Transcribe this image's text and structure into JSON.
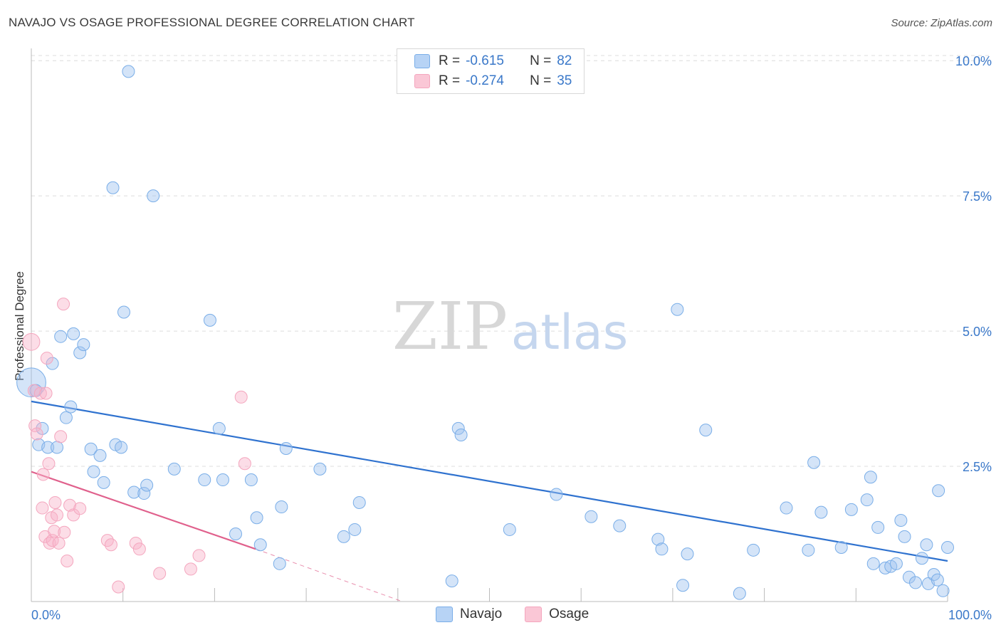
{
  "title": "NAVAJO VS OSAGE PROFESSIONAL DEGREE CORRELATION CHART",
  "source": "Source: ZipAtlas.com",
  "watermark": {
    "zip": "ZIP",
    "atlas": "atlas"
  },
  "legend": {
    "rows": [
      {
        "r_label": "R =",
        "r_value": "-0.615",
        "n_label": "N =",
        "n_value": "82"
      },
      {
        "r_label": "R =",
        "r_value": "-0.274",
        "n_label": "N =",
        "n_value": "35"
      }
    ]
  },
  "bottom_legend": {
    "navajo": "Navajo",
    "osage": "Osage"
  },
  "chart_data": {
    "type": "scatter",
    "title": "NAVAJO VS OSAGE PROFESSIONAL DEGREE CORRELATION CHART",
    "xlabel": "",
    "ylabel": "Professional Degree",
    "xlim": [
      0,
      100
    ],
    "ylim": [
      0,
      10.2
    ],
    "x_tick_labels": [
      "0.0%",
      "100.0%"
    ],
    "y_ticks": [
      2.5,
      5.0,
      7.5,
      10.0
    ],
    "y_tick_labels": [
      "2.5%",
      "5.0%",
      "7.5%",
      "10.0%"
    ],
    "grid": true,
    "series": [
      {
        "name": "Navajo",
        "color": "#7aaee8",
        "line_color": "#2f72cf",
        "trend": {
          "x0": 0,
          "y0": 3.7,
          "x1": 100,
          "y1": 0.75
        },
        "points": [
          [
            0.0,
            4.05,
            2.4
          ],
          [
            0.5,
            3.9,
            1
          ],
          [
            0.8,
            2.9,
            1
          ],
          [
            1.2,
            3.2,
            1
          ],
          [
            1.8,
            2.85,
            1
          ],
          [
            2.3,
            4.4,
            1
          ],
          [
            2.8,
            2.85,
            1
          ],
          [
            3.2,
            4.9,
            1
          ],
          [
            3.8,
            3.4,
            1
          ],
          [
            4.3,
            3.6,
            1
          ],
          [
            4.6,
            4.95,
            1
          ],
          [
            5.3,
            4.6,
            1
          ],
          [
            5.7,
            4.75,
            1
          ],
          [
            6.5,
            2.82,
            1
          ],
          [
            6.8,
            2.4,
            1
          ],
          [
            7.5,
            2.7,
            1
          ],
          [
            7.9,
            2.2,
            1
          ],
          [
            8.9,
            7.65,
            1
          ],
          [
            9.2,
            2.9,
            1
          ],
          [
            9.8,
            2.85,
            1
          ],
          [
            10.1,
            5.35,
            1
          ],
          [
            10.6,
            9.8,
            1
          ],
          [
            11.2,
            2.02,
            1
          ],
          [
            12.3,
            2.0,
            1
          ],
          [
            12.6,
            2.15,
            1
          ],
          [
            13.3,
            7.5,
            1
          ],
          [
            15.6,
            2.45,
            1
          ],
          [
            18.9,
            2.25,
            1
          ],
          [
            19.5,
            5.2,
            1
          ],
          [
            20.5,
            3.2,
            1
          ],
          [
            20.9,
            2.25,
            1
          ],
          [
            22.3,
            1.25,
            1
          ],
          [
            24.0,
            2.25,
            1
          ],
          [
            24.6,
            1.55,
            1
          ],
          [
            25.0,
            1.05,
            1
          ],
          [
            27.1,
            0.7,
            1
          ],
          [
            27.3,
            1.75,
            1
          ],
          [
            27.8,
            2.83,
            1
          ],
          [
            31.5,
            2.45,
            1
          ],
          [
            34.1,
            1.2,
            1
          ],
          [
            35.3,
            1.33,
            1
          ],
          [
            35.8,
            1.83,
            1
          ],
          [
            45.9,
            0.38,
            1
          ],
          [
            46.6,
            3.2,
            1
          ],
          [
            46.9,
            3.08,
            1
          ],
          [
            52.2,
            1.33,
            1
          ],
          [
            57.3,
            1.98,
            1
          ],
          [
            61.1,
            1.57,
            1
          ],
          [
            64.2,
            1.4,
            1
          ],
          [
            68.4,
            1.15,
            1
          ],
          [
            68.8,
            0.97,
            1
          ],
          [
            70.5,
            5.4,
            1
          ],
          [
            71.1,
            0.3,
            1
          ],
          [
            71.6,
            0.88,
            1
          ],
          [
            73.6,
            3.17,
            1
          ],
          [
            77.3,
            0.15,
            1
          ],
          [
            78.8,
            0.95,
            1
          ],
          [
            82.4,
            1.73,
            1
          ],
          [
            84.8,
            0.95,
            1
          ],
          [
            85.4,
            2.57,
            1
          ],
          [
            86.2,
            1.65,
            1
          ],
          [
            88.4,
            1.0,
            1
          ],
          [
            89.5,
            1.7,
            1
          ],
          [
            91.2,
            1.88,
            1
          ],
          [
            91.6,
            2.3,
            1
          ],
          [
            91.9,
            0.7,
            1
          ],
          [
            92.4,
            1.37,
            1
          ],
          [
            93.2,
            0.62,
            1
          ],
          [
            93.8,
            0.65,
            1
          ],
          [
            94.4,
            0.7,
            1
          ],
          [
            94.9,
            1.5,
            1
          ],
          [
            95.3,
            1.2,
            1
          ],
          [
            95.8,
            0.45,
            1
          ],
          [
            96.5,
            0.35,
            1
          ],
          [
            97.2,
            0.8,
            1
          ],
          [
            97.7,
            1.05,
            1
          ],
          [
            97.9,
            0.33,
            1
          ],
          [
            98.5,
            0.5,
            1
          ],
          [
            98.9,
            0.4,
            1
          ],
          [
            99.0,
            2.05,
            1
          ],
          [
            99.5,
            0.2,
            1
          ],
          [
            100.0,
            1.0,
            1
          ]
        ]
      },
      {
        "name": "Osage",
        "color": "#f4a6be",
        "line_color": "#e0608c",
        "trend": {
          "x0": 0,
          "y0": 2.4,
          "x1": 24.5,
          "y1": 0.97
        },
        "trend_dashed": {
          "x0": 24.5,
          "y0": 0.97,
          "x1": 40.5,
          "y1": 0.0
        },
        "points": [
          [
            0.0,
            4.8,
            1.4
          ],
          [
            0.3,
            3.9,
            1
          ],
          [
            0.4,
            3.25,
            1
          ],
          [
            0.6,
            3.1,
            1
          ],
          [
            1.0,
            3.85,
            1
          ],
          [
            1.2,
            1.73,
            1
          ],
          [
            1.3,
            2.35,
            1
          ],
          [
            1.5,
            1.2,
            1
          ],
          [
            1.6,
            3.85,
            1
          ],
          [
            1.7,
            4.5,
            1
          ],
          [
            1.9,
            2.55,
            1
          ],
          [
            2.0,
            1.08,
            1
          ],
          [
            2.2,
            1.55,
            1
          ],
          [
            2.3,
            1.13,
            1
          ],
          [
            2.5,
            1.3,
            1
          ],
          [
            2.6,
            1.83,
            1
          ],
          [
            2.8,
            1.6,
            1
          ],
          [
            3.0,
            1.08,
            1
          ],
          [
            3.2,
            3.05,
            1
          ],
          [
            3.5,
            5.5,
            1
          ],
          [
            3.6,
            1.28,
            1
          ],
          [
            3.9,
            0.75,
            1
          ],
          [
            4.2,
            1.78,
            1
          ],
          [
            4.6,
            1.6,
            1
          ],
          [
            5.3,
            1.72,
            1
          ],
          [
            8.3,
            1.13,
            1
          ],
          [
            8.7,
            1.05,
            1
          ],
          [
            9.5,
            0.27,
            1
          ],
          [
            11.4,
            1.08,
            1
          ],
          [
            11.8,
            0.97,
            1
          ],
          [
            14.0,
            0.52,
            1
          ],
          [
            17.4,
            0.6,
            1
          ],
          [
            18.3,
            0.85,
            1
          ],
          [
            22.9,
            3.78,
            1
          ],
          [
            23.3,
            2.55,
            1
          ]
        ]
      }
    ]
  }
}
